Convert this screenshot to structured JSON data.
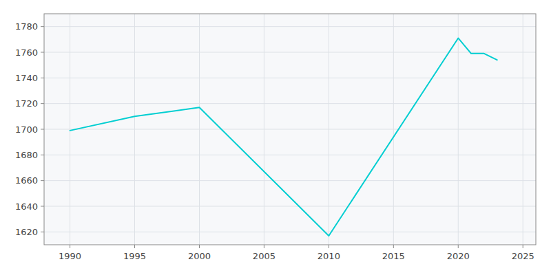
{
  "chart_data": {
    "type": "line",
    "x": [
      1990,
      1995,
      2000,
      2010,
      2020,
      2021,
      2022,
      2023
    ],
    "values": [
      1699,
      1710,
      1717,
      1617,
      1771,
      1759,
      1759,
      1754
    ],
    "color": "#00CED1",
    "xlim": [
      1988,
      2026
    ],
    "ylim": [
      1610,
      1790
    ],
    "xticks": [
      1990,
      1995,
      2000,
      2005,
      2010,
      2015,
      2020,
      2025
    ],
    "yticks": [
      1620,
      1640,
      1660,
      1680,
      1700,
      1720,
      1740,
      1760,
      1780
    ],
    "grid": true
  }
}
